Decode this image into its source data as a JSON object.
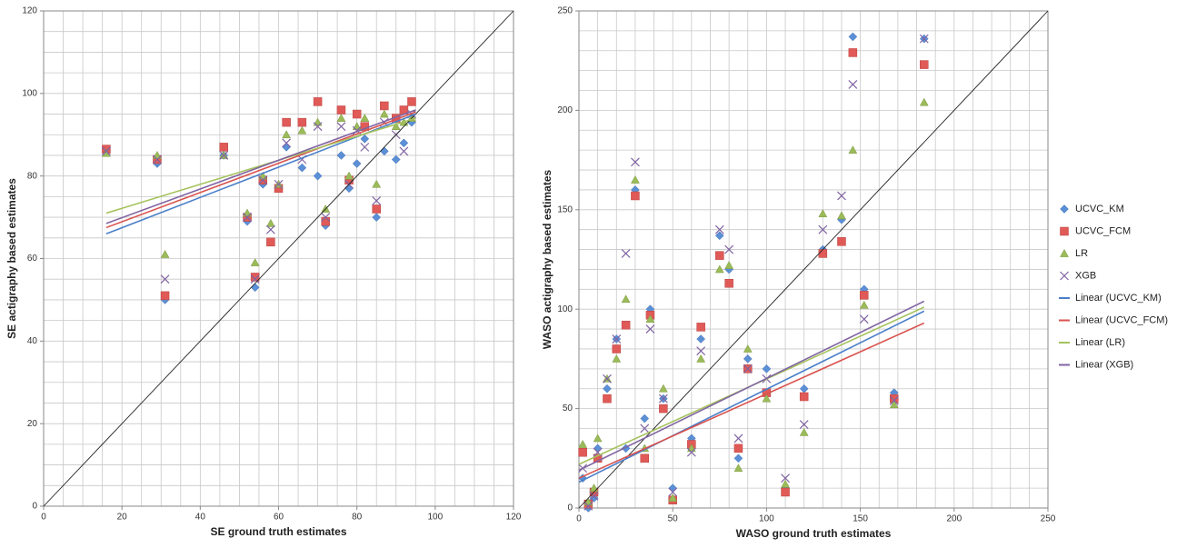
{
  "chart_data": [
    {
      "type": "scatter",
      "x_label": "SE ground truth estimates",
      "y_label": "SE actigraphy based estimates",
      "xlim": [
        0,
        120
      ],
      "ylim": [
        0,
        120
      ],
      "xticks": [
        0,
        20,
        40,
        60,
        80,
        100,
        120
      ],
      "yticks": [
        0,
        20,
        40,
        60,
        80,
        100,
        120
      ],
      "xgrid": [
        0,
        5,
        10,
        15,
        20,
        25,
        30,
        35,
        40,
        45,
        50,
        55,
        60,
        65,
        70,
        75,
        80,
        85,
        90,
        95,
        100,
        105,
        110,
        115,
        120
      ],
      "ygrid": [
        0,
        5,
        10,
        15,
        20,
        25,
        30,
        35,
        40,
        45,
        50,
        55,
        60,
        65,
        70,
        75,
        80,
        85,
        90,
        95,
        100,
        105,
        110,
        115,
        120
      ],
      "series": [
        {
          "color": "#5b8fd6",
          "marker": "diamond",
          "x": [
            16,
            29,
            31,
            46,
            52,
            54,
            56,
            58,
            60,
            62,
            66,
            70,
            72,
            76,
            78,
            80,
            82,
            85,
            87,
            90,
            92,
            94
          ],
          "y": [
            86,
            83,
            50,
            85,
            69,
            53,
            78,
            64,
            77,
            87,
            82,
            80,
            68,
            85,
            77,
            83,
            89,
            70,
            86,
            84,
            88,
            93
          ]
        },
        {
          "color": "#e05a57",
          "marker": "square",
          "x": [
            16,
            29,
            31,
            46,
            52,
            54,
            56,
            58,
            60,
            62,
            66,
            70,
            72,
            76,
            78,
            80,
            82,
            85,
            87,
            90,
            92,
            94
          ],
          "y": [
            86.5,
            84,
            51,
            87,
            70,
            55.5,
            79,
            64,
            77,
            93,
            93,
            98,
            69,
            96,
            79,
            95,
            92,
            72,
            97,
            94,
            96,
            98
          ]
        },
        {
          "color": "#9bbb59",
          "marker": "triangle",
          "x": [
            16,
            29,
            31,
            46,
            52,
            54,
            56,
            58,
            60,
            62,
            66,
            70,
            72,
            76,
            78,
            80,
            82,
            85,
            87,
            90,
            92,
            94
          ],
          "y": [
            85.5,
            85,
            61,
            85,
            71,
            59,
            80,
            68.5,
            78,
            90,
            91,
            93,
            72,
            94,
            80,
            92,
            94,
            78,
            95,
            92,
            93,
            94
          ]
        },
        {
          "color": "#8064a2",
          "marker": "x",
          "x": [
            16,
            29,
            31,
            46,
            52,
            54,
            56,
            58,
            60,
            62,
            66,
            70,
            72,
            76,
            78,
            80,
            82,
            85,
            87,
            90,
            92,
            94
          ],
          "y": [
            86,
            84,
            55,
            85,
            70,
            55,
            79,
            67,
            78,
            88,
            84,
            92,
            70,
            92,
            78,
            91,
            87,
            74,
            93,
            90,
            86,
            95
          ]
        }
      ],
      "trendlines": [
        {
          "color": "#4a7fc9",
          "x": [
            16,
            95
          ],
          "y": [
            66,
            95
          ]
        },
        {
          "color": "#d9534f",
          "x": [
            16,
            95
          ],
          "y": [
            67.5,
            95.5
          ]
        },
        {
          "color": "#a5c25c",
          "x": [
            16,
            95
          ],
          "y": [
            71,
            94
          ]
        },
        {
          "color": "#8064a2",
          "x": [
            16,
            95
          ],
          "y": [
            68.5,
            96
          ]
        }
      ],
      "reference_line": {
        "color": "#222222",
        "x": [
          0,
          120
        ],
        "y": [
          0,
          120
        ]
      }
    },
    {
      "type": "scatter",
      "x_label": "WASO ground truth estimates",
      "y_label": "WASO actigraphy based estimates",
      "xlim": [
        0,
        250
      ],
      "ylim": [
        0,
        250
      ],
      "xticks": [
        0,
        50,
        100,
        150,
        200,
        250
      ],
      "yticks": [
        0,
        50,
        100,
        150,
        200,
        250
      ],
      "xgrid": [
        0,
        10,
        20,
        30,
        40,
        50,
        60,
        70,
        80,
        90,
        100,
        110,
        120,
        130,
        140,
        150,
        160,
        170,
        180,
        190,
        200,
        210,
        220,
        230,
        240,
        250
      ],
      "ygrid": [
        0,
        10,
        20,
        30,
        40,
        50,
        60,
        70,
        80,
        90,
        100,
        110,
        120,
        130,
        140,
        150,
        160,
        170,
        180,
        190,
        200,
        210,
        220,
        230,
        240,
        250
      ],
      "legend": "right",
      "series": [
        {
          "name": "UCVC_KM",
          "color": "#5b8fd6",
          "marker": "diamond",
          "x": [
            2,
            5,
            8,
            10,
            15,
            20,
            25,
            30,
            35,
            38,
            45,
            50,
            60,
            65,
            75,
            80,
            85,
            90,
            100,
            110,
            120,
            130,
            140,
            146,
            152,
            168,
            184
          ],
          "y": [
            15,
            0,
            5,
            30,
            60,
            85,
            30,
            160,
            45,
            100,
            55,
            10,
            35,
            85,
            137,
            120,
            25,
            75,
            70,
            10,
            60,
            130,
            145,
            237,
            110,
            58,
            236
          ]
        },
        {
          "name": "UCVC_FCM",
          "color": "#e05a57",
          "marker": "square",
          "x": [
            2,
            5,
            8,
            10,
            15,
            20,
            25,
            30,
            35,
            38,
            45,
            50,
            60,
            65,
            75,
            80,
            85,
            90,
            100,
            110,
            120,
            130,
            140,
            146,
            152,
            168,
            184
          ],
          "y": [
            28,
            2,
            8,
            25,
            55,
            80,
            92,
            157,
            25,
            97,
            50,
            4,
            32,
            91,
            127,
            113,
            30,
            70,
            58,
            8,
            56,
            128,
            134,
            229,
            107,
            55,
            223
          ]
        },
        {
          "name": "LR",
          "color": "#9bbb59",
          "marker": "triangle",
          "x": [
            2,
            5,
            8,
            10,
            15,
            20,
            25,
            30,
            35,
            38,
            45,
            50,
            60,
            65,
            75,
            80,
            85,
            90,
            100,
            110,
            120,
            130,
            140,
            146,
            152,
            168,
            184
          ],
          "y": [
            32,
            3,
            10,
            35,
            65,
            75,
            105,
            165,
            30,
            95,
            60,
            5,
            30,
            75,
            120,
            122,
            20,
            80,
            55,
            12,
            38,
            148,
            147,
            180,
            102,
            52,
            204
          ]
        },
        {
          "name": "XGB",
          "color": "#8064a2",
          "marker": "x",
          "x": [
            2,
            5,
            8,
            10,
            15,
            20,
            25,
            30,
            35,
            38,
            45,
            50,
            60,
            65,
            75,
            80,
            85,
            90,
            100,
            110,
            120,
            130,
            140,
            146,
            152,
            168,
            184
          ],
          "y": [
            20,
            1,
            6,
            28,
            65,
            85,
            128,
            174,
            40,
            90,
            55,
            8,
            28,
            79,
            140,
            130,
            35,
            70,
            65,
            15,
            42,
            140,
            157,
            213,
            95,
            54,
            236
          ]
        }
      ],
      "trendlines": [
        {
          "name": "Linear (UCVC_KM)",
          "color": "#4a7fc9",
          "x": [
            0,
            184
          ],
          "y": [
            13,
            99
          ]
        },
        {
          "name": "Linear (UCVC_FCM)",
          "color": "#d9534f",
          "x": [
            0,
            184
          ],
          "y": [
            15,
            93
          ]
        },
        {
          "name": "Linear (LR)",
          "color": "#a5c25c",
          "x": [
            0,
            184
          ],
          "y": [
            22,
            101
          ]
        },
        {
          "name": "Linear (XGB)",
          "color": "#8064a2",
          "x": [
            0,
            184
          ],
          "y": [
            19,
            104
          ]
        }
      ],
      "reference_line": {
        "color": "#222222",
        "x": [
          0,
          250
        ],
        "y": [
          0,
          250
        ]
      }
    }
  ]
}
